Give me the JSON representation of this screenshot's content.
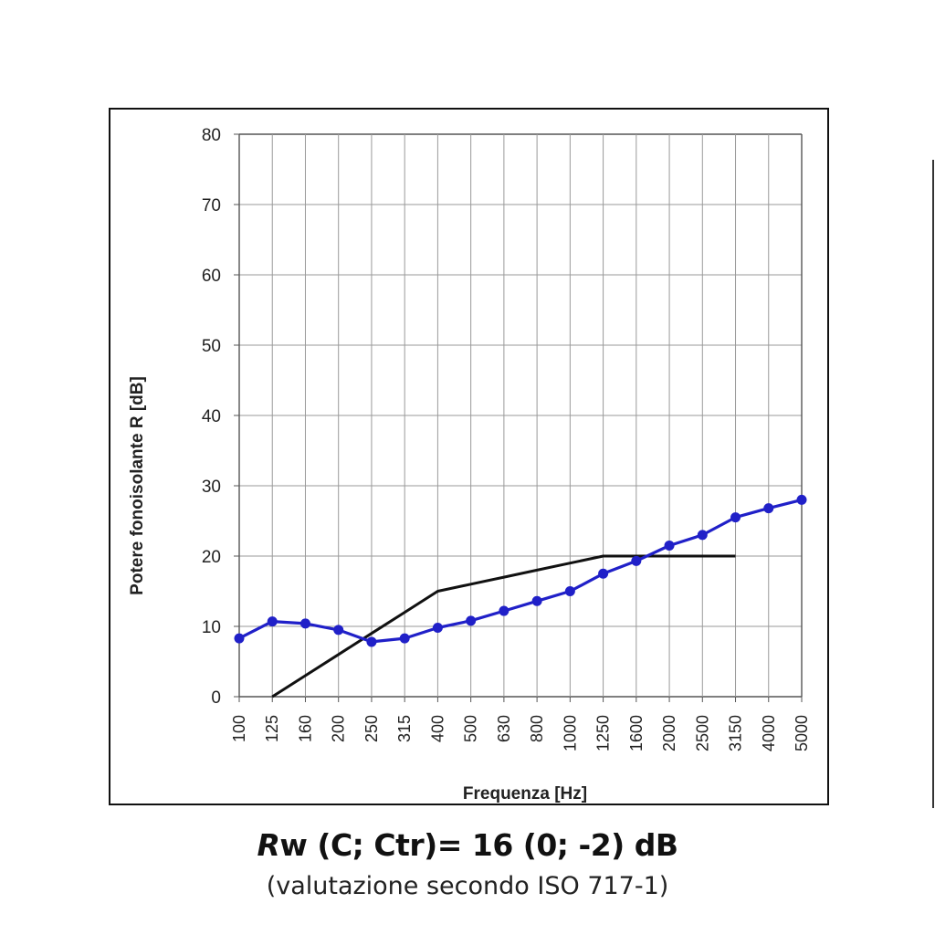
{
  "chart_data": {
    "type": "line",
    "ylabel": "Potere fonoisolante R [dB]",
    "xlabel": "Frequenza [Hz]",
    "ylim": [
      0,
      80
    ],
    "yticks": [
      "0",
      "10",
      "20",
      "30",
      "40",
      "50",
      "60",
      "70",
      "80"
    ],
    "categories": [
      "100",
      "125",
      "160",
      "200",
      "250",
      "315",
      "400",
      "500",
      "630",
      "800",
      "1000",
      "1250",
      "1600",
      "2000",
      "2500",
      "3150",
      "4000",
      "5000"
    ],
    "grid": true,
    "legend": "none",
    "series": [
      {
        "color": "#2020c8",
        "markers": true,
        "values": [
          8.3,
          10.7,
          10.4,
          9.5,
          7.8,
          8.3,
          9.8,
          10.8,
          12.2,
          13.6,
          15.0,
          17.5,
          19.3,
          21.5,
          23.0,
          25.5,
          26.8,
          28.0
        ]
      },
      {
        "color": "#111111",
        "markers": false,
        "values": [
          null,
          0,
          3,
          6,
          9,
          12,
          15,
          16,
          17,
          18,
          19,
          20,
          20,
          20,
          20,
          20,
          null,
          null
        ]
      }
    ]
  },
  "caption": {
    "rating_symbol": "R",
    "rating_text": "w (C; Ctr)= 16 (0; -2) dB",
    "note": "(valutazione secondo ISO 717-1)"
  }
}
